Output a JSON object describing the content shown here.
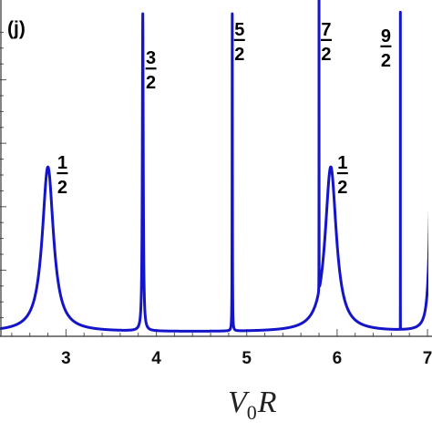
{
  "chart_data": {
    "type": "line",
    "panel_label": "(j)",
    "xlabel": {
      "main": "V",
      "sub": "0",
      "rest": "R"
    },
    "ylabel": "",
    "xlim": [
      2.27,
      7.05
    ],
    "ylim": [
      0,
      1
    ],
    "x_ticks": [
      3,
      4,
      5,
      6,
      7
    ],
    "x_tick_labels": [
      "3",
      "4",
      "5",
      "6",
      "7"
    ],
    "color": "#1414c8",
    "series": [
      {
        "peaks": [
          {
            "x0": 2.8,
            "width": 0.075,
            "height": 0.52
          },
          {
            "x0": 3.85,
            "width": 0.006,
            "height": 1.0
          },
          {
            "x0": 4.84,
            "width": 0.0018,
            "height": 1.0
          },
          {
            "x0": 5.8,
            "width": 0.0004,
            "height": 1.0
          },
          {
            "x0": 5.93,
            "width": 0.075,
            "height": 0.52
          },
          {
            "x0": 6.7,
            "width": 8e-05,
            "height": 1.0
          },
          {
            "x0": 7.05,
            "width": 0.02,
            "height": 1.0
          }
        ],
        "baseline": 0.005
      }
    ],
    "annotations": [
      {
        "num": "1",
        "den": "2",
        "x": 2.96,
        "y": 0.52
      },
      {
        "num": "3",
        "den": "2",
        "x": 3.94,
        "y": 0.85
      },
      {
        "num": "5",
        "den": "2",
        "x": 4.92,
        "y": 0.94
      },
      {
        "num": "7",
        "den": "2",
        "x": 5.88,
        "y": 0.94
      },
      {
        "num": "1",
        "den": "2",
        "x": 6.06,
        "y": 0.52
      },
      {
        "num": "9",
        "den": "2",
        "x": 6.54,
        "y": 0.92
      }
    ]
  }
}
